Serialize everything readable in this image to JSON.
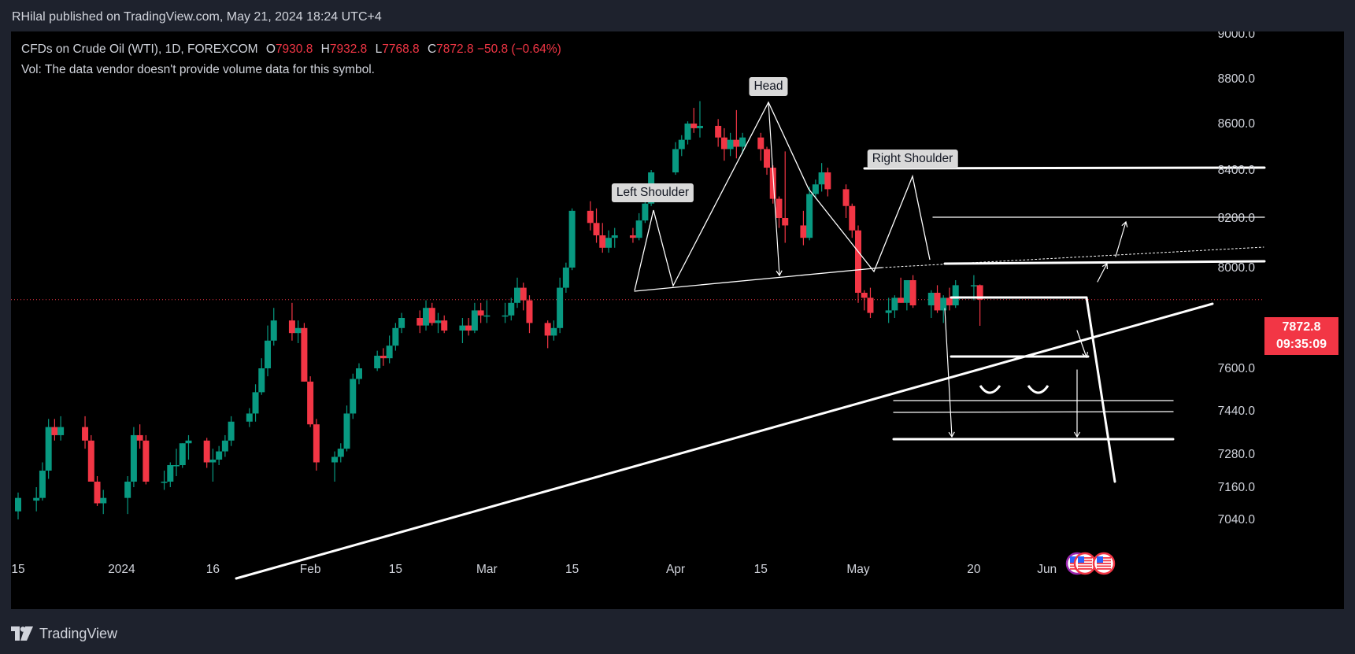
{
  "header": {
    "published_text": "RHilal published on TradingView.com, May 21, 2024 18:24 UTC+4"
  },
  "legend": {
    "symbol": "CFDs on Crude Oil (WTI), 1D, FOREXCOM",
    "open_label": "O",
    "open": "7930.8",
    "high_label": "H",
    "high": "7932.8",
    "low_label": "L",
    "low": "7768.8",
    "close_label": "C",
    "close": "7872.8",
    "change": "−50.8 (−0.64%)",
    "vol_note": "Vol: The data vendor doesn't provide volume data for this symbol."
  },
  "price_badge": {
    "price": "7872.8",
    "countdown": "09:35:09"
  },
  "annotations": {
    "head": "Head",
    "left_shoulder": "Left Shoulder",
    "right_shoulder": "Right Shoulder"
  },
  "footer": {
    "brand": "TradingView"
  },
  "colors": {
    "up": "#089981",
    "down": "#f23645",
    "background": "#000000",
    "frame": "#1e222d",
    "drawing": "#ffffff"
  },
  "chart_data": {
    "type": "candlestick",
    "title": "CFDs on Crude Oil (WTI), 1D, FOREXCOM",
    "x_tick_labels": [
      "15",
      "2024",
      "16",
      "Feb",
      "15",
      "Mar",
      "15",
      "Apr",
      "15",
      "May",
      "20",
      "Jun"
    ],
    "y_tick_labels": [
      "9000.0",
      "8800.0",
      "8600.0",
      "8400.0",
      "8200.0",
      "8000.0",
      "7600.0",
      "7440.0",
      "7280.0",
      "7160.0",
      "7040.0"
    ],
    "y_scale": "log",
    "ylim": [
      7000,
      9000
    ],
    "last_price": 7872.8,
    "ohlc": {
      "dates": [
        "2023-12-15",
        "2023-12-18",
        "2023-12-19",
        "2023-12-20",
        "2023-12-21",
        "2023-12-22",
        "2023-12-26",
        "2023-12-27",
        "2023-12-28",
        "2023-12-29",
        "2024-01-02",
        "2024-01-03",
        "2024-01-04",
        "2024-01-05",
        "2024-01-08",
        "2024-01-09",
        "2024-01-10",
        "2024-01-11",
        "2024-01-12",
        "2024-01-15",
        "2024-01-16",
        "2024-01-17",
        "2024-01-18",
        "2024-01-19",
        "2024-01-22",
        "2024-01-23",
        "2024-01-24",
        "2024-01-25",
        "2024-01-26",
        "2024-01-29",
        "2024-01-30",
        "2024-01-31",
        "2024-02-01",
        "2024-02-02",
        "2024-02-05",
        "2024-02-06",
        "2024-02-07",
        "2024-02-08",
        "2024-02-09",
        "2024-02-12",
        "2024-02-13",
        "2024-02-14",
        "2024-02-15",
        "2024-02-16",
        "2024-02-19",
        "2024-02-20",
        "2024-02-21",
        "2024-02-22",
        "2024-02-23",
        "2024-02-26",
        "2024-02-27",
        "2024-02-28",
        "2024-02-29",
        "2024-03-01",
        "2024-03-04",
        "2024-03-05",
        "2024-03-06",
        "2024-03-07",
        "2024-03-08",
        "2024-03-11",
        "2024-03-12",
        "2024-03-13",
        "2024-03-14",
        "2024-03-15",
        "2024-03-18",
        "2024-03-19",
        "2024-03-20",
        "2024-03-21",
        "2024-03-22",
        "2024-03-25",
        "2024-03-26",
        "2024-03-27",
        "2024-03-28",
        "2024-04-01",
        "2024-04-02",
        "2024-04-03",
        "2024-04-04",
        "2024-04-05",
        "2024-04-08",
        "2024-04-09",
        "2024-04-10",
        "2024-04-11",
        "2024-04-12",
        "2024-04-15",
        "2024-04-16",
        "2024-04-17",
        "2024-04-18",
        "2024-04-19",
        "2024-04-22",
        "2024-04-23",
        "2024-04-24",
        "2024-04-25",
        "2024-04-26",
        "2024-04-29",
        "2024-04-30",
        "2024-05-01",
        "2024-05-02",
        "2024-05-03",
        "2024-05-06",
        "2024-05-07",
        "2024-05-08",
        "2024-05-09",
        "2024-05-10",
        "2024-05-13",
        "2024-05-14",
        "2024-05-15",
        "2024-05-16",
        "2024-05-17",
        "2024-05-20",
        "2024-05-21"
      ],
      "open": [
        7070,
        7110,
        7120,
        7220,
        7380,
        7350,
        7380,
        7330,
        7180,
        7100,
        7120,
        7180,
        7350,
        7330,
        7180,
        7180,
        7240,
        7240,
        7320,
        7330,
        7250,
        7260,
        7290,
        7330,
        7400,
        7430,
        7510,
        7600,
        7710,
        7790,
        7740,
        7760,
        7550,
        7390,
        7250,
        7270,
        7300,
        7430,
        7560,
        7600,
        7650,
        7640,
        7690,
        7760,
        7800,
        7770,
        7840,
        7780,
        7790,
        7750,
        7770,
        7750,
        7830,
        7810,
        7810,
        7810,
        7860,
        7920,
        7870,
        7780,
        7730,
        7760,
        7920,
        8000,
        8230,
        8180,
        8130,
        8080,
        8120,
        8130,
        8120,
        8190,
        8260,
        8390,
        8490,
        8530,
        8600,
        8580,
        8590,
        8540,
        8490,
        8530,
        8500,
        8540,
        8490,
        8410,
        8280,
        8200,
        8170,
        8120,
        8300,
        8340,
        8390,
        8320,
        8250,
        8150,
        7900,
        7880,
        7820,
        7830,
        7880,
        7860,
        7950,
        7850,
        7900,
        7830,
        7880,
        7850,
        7930,
        7930
      ],
      "high": [
        7140,
        7160,
        7250,
        7410,
        7410,
        7420,
        7420,
        7350,
        7200,
        7150,
        7200,
        7380,
        7390,
        7350,
        7220,
        7250,
        7300,
        7320,
        7350,
        7340,
        7300,
        7310,
        7350,
        7420,
        7450,
        7540,
        7640,
        7770,
        7840,
        7860,
        7790,
        7780,
        7570,
        7410,
        7290,
        7320,
        7460,
        7580,
        7620,
        7670,
        7680,
        7730,
        7780,
        7820,
        7830,
        7870,
        7860,
        7820,
        7810,
        7800,
        7800,
        7860,
        7860,
        7870,
        7860,
        7880,
        7960,
        7940,
        7890,
        7790,
        7790,
        7960,
        8020,
        8240,
        8270,
        8240,
        8180,
        8150,
        8160,
        8160,
        8220,
        8290,
        8400,
        8520,
        8550,
        8610,
        8670,
        8700,
        8620,
        8580,
        8560,
        8660,
        8560,
        8560,
        8500,
        8420,
        8290,
        8480,
        8230,
        8330,
        8360,
        8430,
        8410,
        8340,
        8260,
        8170,
        7910,
        7920,
        7880,
        7890,
        7960,
        7950,
        7970,
        7910,
        7930,
        7890,
        7920,
        7950,
        7970,
        7932.8
      ],
      "low": [
        7040,
        7070,
        7110,
        7190,
        7330,
        7330,
        7300,
        7180,
        7090,
        7060,
        7060,
        7160,
        7300,
        7170,
        7150,
        7160,
        7200,
        7230,
        7260,
        7230,
        7180,
        7240,
        7270,
        7310,
        7380,
        7400,
        7500,
        7570,
        7690,
        7710,
        7700,
        7550,
        7380,
        7220,
        7180,
        7250,
        7290,
        7410,
        7540,
        7590,
        7610,
        7620,
        7670,
        7740,
        7740,
        7750,
        7770,
        7740,
        7740,
        7700,
        7730,
        7740,
        7780,
        7780,
        7780,
        7790,
        7840,
        7830,
        7740,
        7680,
        7710,
        7740,
        7900,
        7990,
        8150,
        8100,
        8060,
        8060,
        8080,
        8100,
        8110,
        8180,
        8250,
        8380,
        8460,
        8510,
        8560,
        8540,
        8500,
        8440,
        8460,
        8450,
        8470,
        8440,
        8380,
        8260,
        8160,
        8100,
        8090,
        8110,
        8280,
        8310,
        8290,
        8200,
        8120,
        7860,
        7830,
        7800,
        7780,
        7800,
        7860,
        7830,
        7840,
        7800,
        7820,
        7780,
        7830,
        7840,
        7870,
        7768.8
      ],
      "close": [
        7120,
        7120,
        7220,
        7380,
        7350,
        7380,
        7330,
        7180,
        7100,
        7120,
        7180,
        7350,
        7330,
        7180,
        7180,
        7240,
        7240,
        7320,
        7330,
        7250,
        7260,
        7290,
        7330,
        7400,
        7430,
        7510,
        7600,
        7710,
        7790,
        7740,
        7760,
        7550,
        7390,
        7250,
        7270,
        7300,
        7430,
        7560,
        7600,
        7650,
        7640,
        7690,
        7760,
        7800,
        7770,
        7840,
        7780,
        7790,
        7750,
        7770,
        7750,
        7830,
        7810,
        7810,
        7810,
        7860,
        7920,
        7870,
        7780,
        7730,
        7760,
        7920,
        8000,
        8230,
        8180,
        8130,
        8080,
        8120,
        8130,
        8120,
        8190,
        8260,
        8390,
        8490,
        8530,
        8600,
        8580,
        8590,
        8540,
        8490,
        8530,
        8500,
        8540,
        8490,
        8410,
        8280,
        8200,
        8170,
        8120,
        8300,
        8340,
        8390,
        8320,
        8250,
        8150,
        7900,
        7880,
        7820,
        7830,
        7880,
        7860,
        7950,
        7850,
        7900,
        7830,
        7880,
        7850,
        7930,
        7930,
        7872.8
      ]
    }
  }
}
